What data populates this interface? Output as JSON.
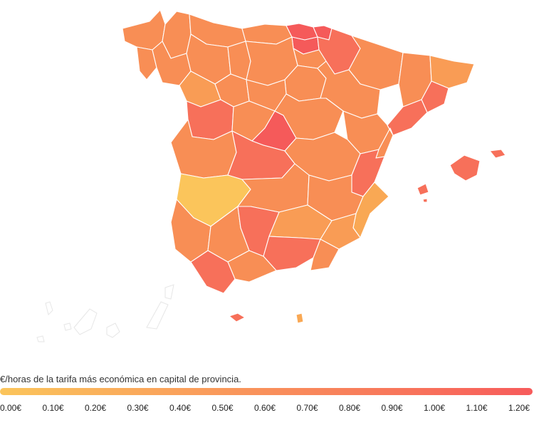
{
  "legend": {
    "title": "€/horas de la tarifa más económica en capital de provincia.",
    "ticks": [
      "0.00€",
      "0.10€",
      "0.20€",
      "0.30€",
      "0.40€",
      "0.50€",
      "0.60€",
      "0.70€",
      "0.80€",
      "0.90€",
      "1.00€",
      "1.10€",
      "1.20€"
    ],
    "range": [
      0.0,
      1.2
    ],
    "color_start": "#fbc55b",
    "color_end": "#f75b5b"
  },
  "colors": {
    "base_orange": "#f88e55",
    "light_orange": "#f99c55",
    "red_orange": "#f7705a",
    "red": "#f55a5a",
    "yellow": "#fbc55b",
    "amber": "#f9a854"
  }
}
